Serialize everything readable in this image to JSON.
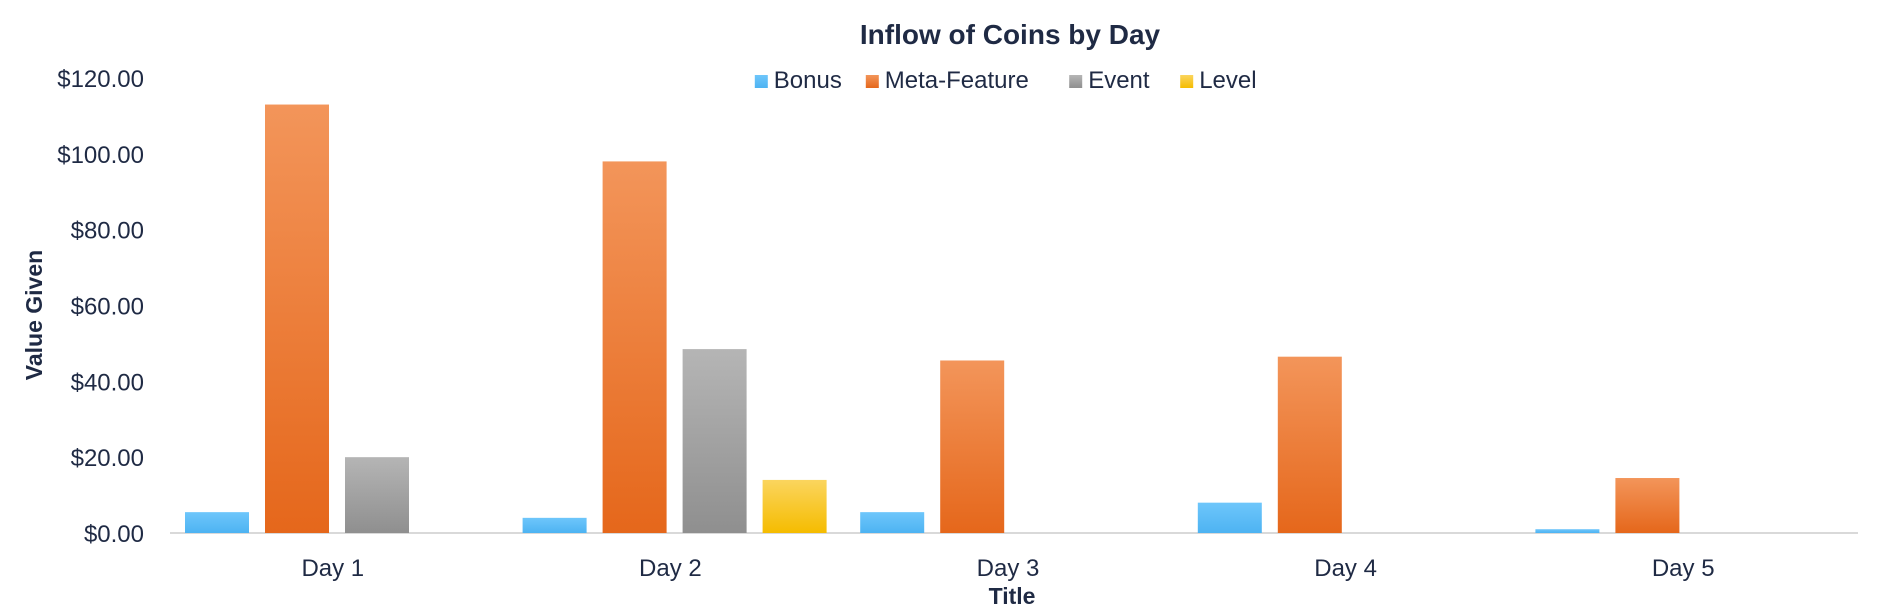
{
  "chart_data": {
    "type": "bar",
    "title": "Inflow of Coins by Day",
    "xlabel": "Title",
    "ylabel": "Value Given",
    "categories": [
      "Day 1",
      "Day 2",
      "Day 3",
      "Day 4",
      "Day 5"
    ],
    "series": [
      {
        "name": "Bonus",
        "values": [
          5.5,
          4.0,
          5.5,
          8.0,
          1.0
        ],
        "color": "#5bbcf7",
        "gradient": [
          "#6ec6fb",
          "#4db3f2"
        ]
      },
      {
        "name": "Meta-Feature",
        "values": [
          113,
          98,
          45.5,
          46.5,
          14.5
        ],
        "color": "#f07d2a",
        "gradient": [
          "#f3955a",
          "#e5671b"
        ]
      },
      {
        "name": "Event",
        "values": [
          20,
          48.5,
          0,
          0,
          0
        ],
        "color": "#a5a5a5",
        "gradient": [
          "#b5b5b5",
          "#8f8f8f"
        ]
      },
      {
        "name": "Level",
        "values": [
          0,
          14,
          0,
          0,
          0
        ],
        "color": "#f8c51c",
        "gradient": [
          "#fbd55e",
          "#f5bc00"
        ]
      }
    ],
    "y_ticks": [
      "$0.00",
      "$20.00",
      "$40.00",
      "$60.00",
      "$80.00",
      "$100.00",
      "$120.00"
    ],
    "ylim": [
      0,
      120
    ],
    "grid": false,
    "legend": "top-center"
  }
}
